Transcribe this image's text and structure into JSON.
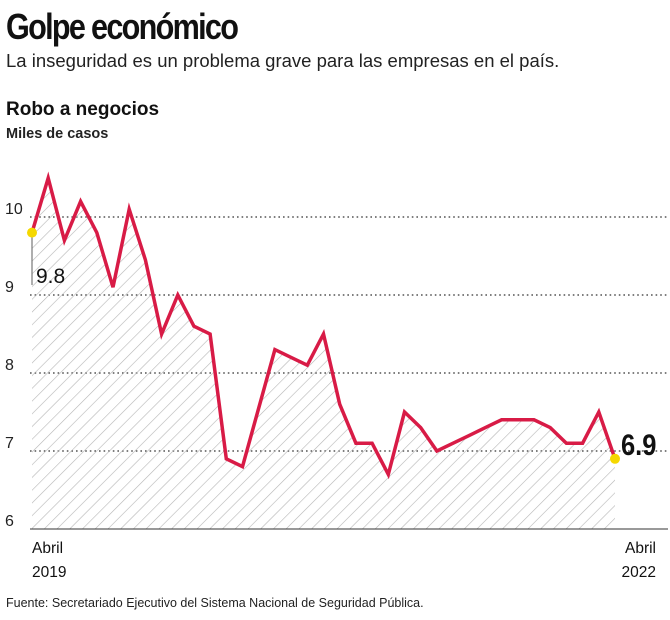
{
  "header": {
    "title": "Golpe económico",
    "subtitle": "La inseguridad es un problema grave para las empresas en el país."
  },
  "chart_data": {
    "type": "line",
    "title": "Robo a negocios",
    "ylabel": "Miles de casos",
    "ylim": [
      6,
      10.5
    ],
    "yticks": [
      "6",
      "7",
      "8",
      "9",
      "10"
    ],
    "x_start_label": [
      "Abril",
      "2019"
    ],
    "x_end_label": [
      "Abril",
      "2022"
    ],
    "values": [
      9.8,
      10.5,
      9.7,
      10.2,
      9.8,
      9.1,
      10.1,
      9.45,
      8.5,
      9.0,
      8.6,
      8.5,
      6.9,
      6.8,
      7.55,
      8.3,
      8.2,
      8.1,
      8.5,
      7.6,
      7.1,
      7.1,
      6.7,
      7.5,
      7.3,
      7.0,
      7.1,
      7.2,
      7.3,
      7.4,
      7.4,
      7.4,
      7.3,
      7.1,
      7.1,
      7.5,
      6.9
    ],
    "annotations": {
      "first": "9.8",
      "last": "6.9"
    },
    "grid": true,
    "colors": {
      "line": "#d81b46",
      "marker": "#f5d800",
      "hatch": "#b5b5b5"
    }
  },
  "footer": {
    "source": "Fuente: Secretariado Ejecutivo del Sistema Nacional de Seguridad Pública."
  }
}
